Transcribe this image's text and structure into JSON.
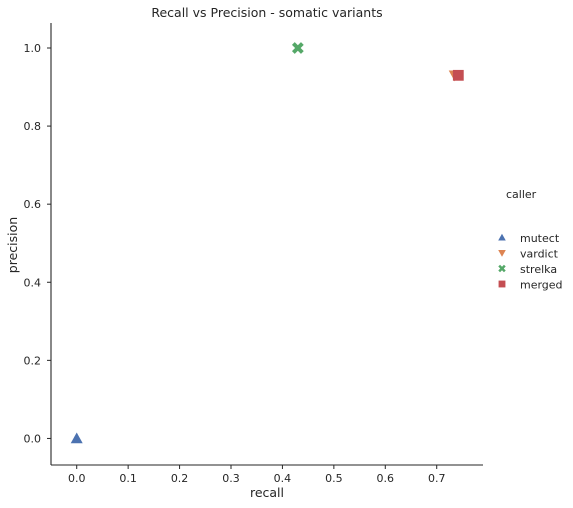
{
  "chart_data": {
    "type": "scatter",
    "title": "Recall vs Precision - somatic variants",
    "xlabel": "recall",
    "ylabel": "precision",
    "xlim": [
      -0.05,
      0.79
    ],
    "ylim": [
      -0.068,
      1.064
    ],
    "xticks": [
      0.0,
      0.1,
      0.2,
      0.3,
      0.4,
      0.5,
      0.6,
      0.7
    ],
    "xtick_labels": [
      "0.0",
      "0.1",
      "0.2",
      "0.3",
      "0.4",
      "0.5",
      "0.6",
      "0.7"
    ],
    "yticks": [
      0.0,
      0.2,
      0.4,
      0.6,
      0.8,
      1.0
    ],
    "ytick_labels": [
      "0.0",
      "0.2",
      "0.4",
      "0.6",
      "0.8",
      "1.0"
    ],
    "grid": false,
    "legend": {
      "title": "caller",
      "placement": "outside-right"
    },
    "series": [
      {
        "name": "mutect",
        "marker": "triangle-up",
        "color": "#4c72b0",
        "points": [
          {
            "x": 0.0,
            "y": 0.0
          }
        ]
      },
      {
        "name": "vardict",
        "marker": "triangle-down",
        "color": "#dd8452",
        "points": [
          {
            "x": 0.735,
            "y": 0.93
          }
        ]
      },
      {
        "name": "strelka",
        "marker": "x",
        "color": "#55a868",
        "points": [
          {
            "x": 0.43,
            "y": 1.0
          }
        ]
      },
      {
        "name": "merged",
        "marker": "square",
        "color": "#c44e52",
        "points": [
          {
            "x": 0.742,
            "y": 0.93
          }
        ]
      }
    ]
  }
}
